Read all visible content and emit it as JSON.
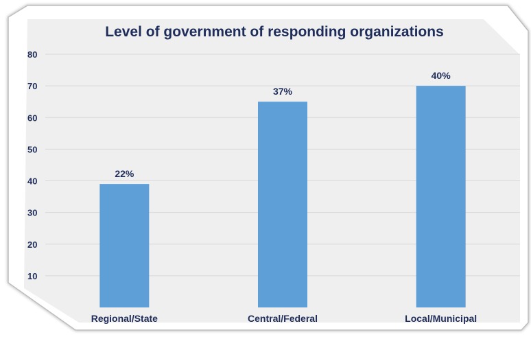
{
  "chart_data": {
    "type": "bar",
    "title": "Level of government of responding organizations",
    "categories": [
      "Regional/State",
      "Central/Federal",
      "Local/Municipal"
    ],
    "values": [
      39,
      65,
      70
    ],
    "data_labels": [
      "22%",
      "37%",
      "40%"
    ],
    "ylim": [
      0,
      80
    ],
    "yticks": [
      10,
      20,
      30,
      40,
      50,
      60,
      70,
      80
    ],
    "grid": true,
    "legend": "none",
    "xlabel": "",
    "ylabel": ""
  },
  "colors": {
    "bar": "#5f9fd8",
    "text": "#1f2d5a",
    "background": "#efefef",
    "grid": "#d8d8d8",
    "border": "#c8c8c8"
  }
}
